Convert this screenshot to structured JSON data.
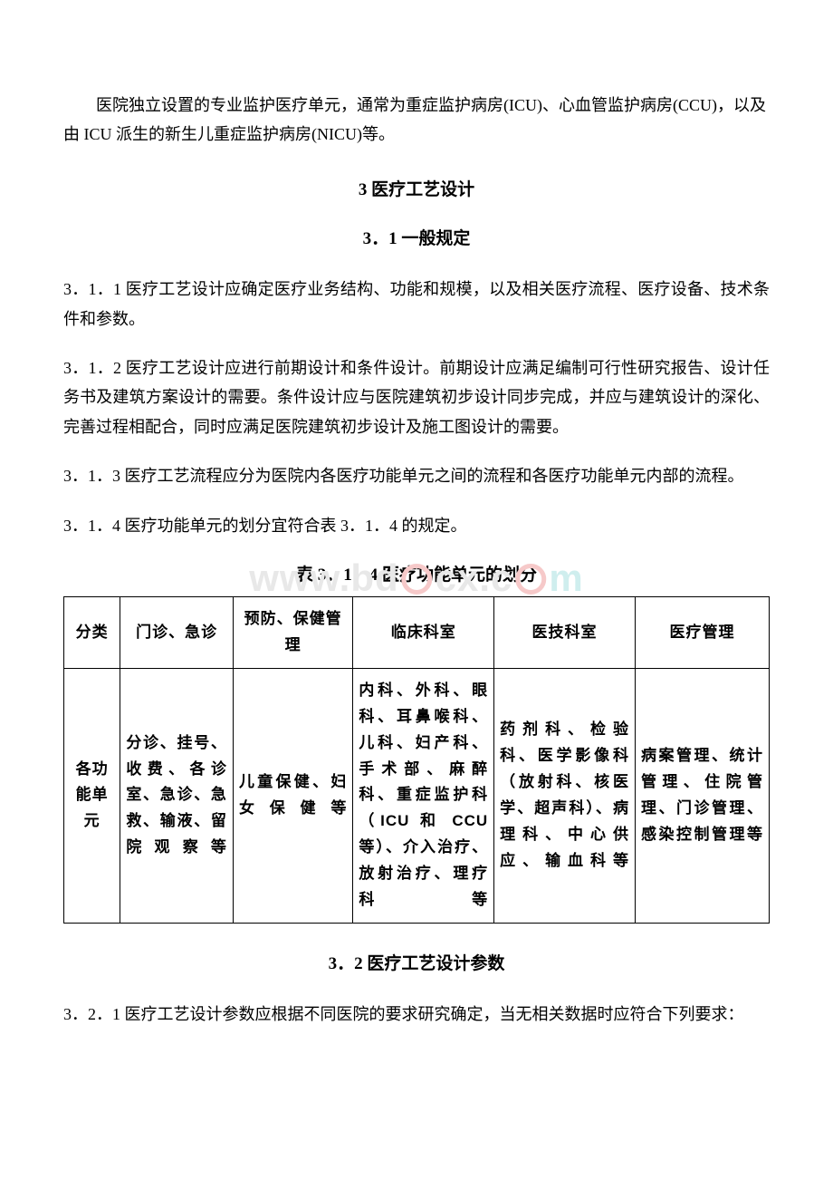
{
  "intro": "医院独立设置的专业监护医疗单元，通常为重症监护病房(ICU)、心血管监护病房(CCU)，以及由 ICU 派生的新生儿重症监护病房(NICU)等。",
  "section3": {
    "title": "3 医疗工艺设计",
    "sub31": {
      "title": "3．1 一般规定",
      "c1": "3．1．1 医疗工艺设计应确定医疗业务结构、功能和规模，以及相关医疗流程、医疗设备、技术条件和参数。",
      "c2": "3．1．2 医疗工艺设计应进行前期设计和条件设计。前期设计应满足编制可行性研究报告、设计任务书及建筑方案设计的需要。条件设计应与医院建筑初步设计同步完成，并应与建筑设计的深化、完善过程相配合，同时应满足医院建筑初步设计及施工图设计的需要。",
      "c3": "3．1．3 医疗工艺流程应分为医院内各医疗功能单元之间的流程和各医疗功能单元内部的流程。",
      "c4": "3．1．4 医疗功能单元的划分宜符合表 3．1．4 的规定。"
    },
    "table314": {
      "caption": "表 3．1．4 医疗功能单元的划分",
      "headers": [
        "分类",
        "门诊、急诊",
        "预防、保健管理",
        "临床科室",
        "医技科室",
        "医疗管理"
      ],
      "rowLabel": "各功能单元",
      "cells": [
        "分诊、挂号、收费、各诊室、急诊、急救、输液、留院观察等",
        "儿童保健、妇女保健等",
        "内科、外科、眼科、耳鼻喉科、儿科、妇产科、手术部、麻醉科、重症监护科（ICU 和 CCU 等）、介入治疗、放射治疗、理疗科等",
        "药剂科、检验科、医学影像科（放射科、核医学、超声科）、病理科、中心供应、输血科等",
        "病案管理、统计管理、住院管理、门诊管理、感染控制管理等"
      ]
    },
    "sub32": {
      "title": "3．2 医疗工艺设计参数",
      "c1": "3．2．1 医疗工艺设计参数应根据不同医院的要求研究确定，当无相关数据时应符合下列要求："
    }
  },
  "watermark": {
    "prefix": "www.bd",
    "mid": "cx.c",
    "suffix": "m"
  },
  "style": {
    "text_color": "#000000",
    "background_color": "#ffffff",
    "watermark_gray": "#e8e8e8",
    "watermark_red": "#f6c9c9",
    "watermark_teal": "#cfeeee",
    "body_fontsize": 18,
    "heading_fontsize": 19,
    "table_fontsize": 17,
    "table_border": "#000000",
    "font_family": "SimSun"
  }
}
